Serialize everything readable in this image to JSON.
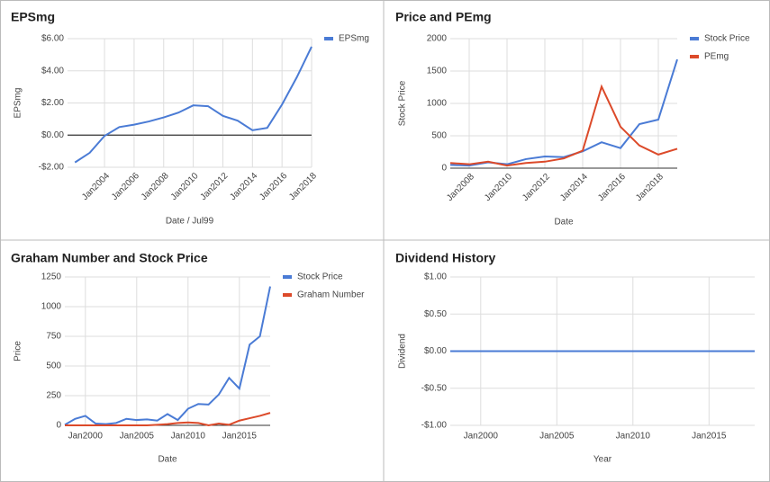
{
  "chart_data": [
    {
      "type": "line",
      "title": "EPSmg",
      "xlabel": "Date / Jul99",
      "ylabel": "EPSmg",
      "legend": "right",
      "tick_rotate": true,
      "x": [
        2002,
        2003,
        2004,
        2005,
        2006,
        2007,
        2008,
        2009,
        2010,
        2011,
        2012,
        2013,
        2014,
        2015,
        2016,
        2017,
        2018
      ],
      "series": [
        {
          "name": "EPSmg",
          "color": "#4a7bd5",
          "values": [
            -1.7,
            -1.1,
            -0.05,
            0.5,
            0.65,
            0.85,
            1.1,
            1.4,
            1.85,
            1.8,
            1.2,
            0.9,
            0.3,
            0.45,
            1.9,
            3.6,
            5.5
          ]
        }
      ],
      "xlim": [
        2001.5,
        2018
      ],
      "xticks": [
        {
          "value": 2004,
          "label": "Jan2004"
        },
        {
          "value": 2006,
          "label": "Jan2006"
        },
        {
          "value": 2008,
          "label": "Jan2008"
        },
        {
          "value": 2010,
          "label": "Jan2010"
        },
        {
          "value": 2012,
          "label": "Jan2012"
        },
        {
          "value": 2014,
          "label": "Jan2014"
        },
        {
          "value": 2016,
          "label": "Jan2016"
        },
        {
          "value": 2018,
          "label": "Jan2018"
        }
      ],
      "ylim": [
        -2,
        6
      ],
      "yticks": [
        {
          "value": -2,
          "label": "-$2.00"
        },
        {
          "value": 0,
          "label": "$0.00"
        },
        {
          "value": 2,
          "label": "$2.00"
        },
        {
          "value": 4,
          "label": "$4.00"
        },
        {
          "value": 6,
          "label": "$6.00"
        }
      ],
      "grid": true
    },
    {
      "type": "line",
      "title": "Price and PEmg",
      "xlabel": "Date",
      "ylabel": "Stock Price",
      "legend": "right",
      "tick_rotate": true,
      "x": [
        2007,
        2008,
        2009,
        2010,
        2011,
        2012,
        2013,
        2014,
        2015,
        2016,
        2017,
        2018,
        2019
      ],
      "series": [
        {
          "name": "Stock Price",
          "color": "#4a7bd5",
          "values": [
            50,
            40,
            90,
            60,
            140,
            180,
            170,
            260,
            400,
            310,
            680,
            750,
            1680
          ]
        },
        {
          "name": "PEmg",
          "color": "#dc4a2a",
          "values": [
            80,
            60,
            100,
            40,
            80,
            100,
            150,
            270,
            1260,
            640,
            350,
            210,
            300
          ]
        }
      ],
      "xlim": [
        2007,
        2019
      ],
      "xticks": [
        {
          "value": 2008,
          "label": "Jan2008"
        },
        {
          "value": 2010,
          "label": "Jan2010"
        },
        {
          "value": 2012,
          "label": "Jan2012"
        },
        {
          "value": 2014,
          "label": "Jan2014"
        },
        {
          "value": 2016,
          "label": "Jan2016"
        },
        {
          "value": 2018,
          "label": "Jan2018"
        }
      ],
      "ylim": [
        0,
        2000
      ],
      "yticks": [
        0,
        500,
        1000,
        1500,
        2000
      ],
      "grid": true
    },
    {
      "type": "line",
      "title": "Graham Number and Stock Price",
      "xlabel": "Date",
      "ylabel": "Price",
      "legend": "right",
      "tick_rotate": false,
      "x": [
        1998,
        1999,
        2000,
        2001,
        2002,
        2003,
        2004,
        2005,
        2006,
        2007,
        2008,
        2009,
        2010,
        2011,
        2012,
        2013,
        2014,
        2015,
        2016,
        2017,
        2018
      ],
      "series": [
        {
          "name": "Stock Price",
          "color": "#4a7bd5",
          "values": [
            5,
            55,
            80,
            15,
            10,
            20,
            55,
            45,
            50,
            40,
            95,
            45,
            140,
            180,
            175,
            260,
            400,
            310,
            680,
            750,
            1170
          ]
        },
        {
          "name": "Graham Number",
          "color": "#dc4a2a",
          "values": [
            0,
            0,
            0,
            0,
            0,
            0,
            0,
            0,
            0,
            5,
            10,
            20,
            25,
            20,
            0,
            15,
            5,
            40,
            60,
            80,
            105
          ]
        }
      ],
      "xlim": [
        1998,
        2018
      ],
      "xticks": [
        {
          "value": 2000,
          "label": "Jan2000"
        },
        {
          "value": 2005,
          "label": "Jan2005"
        },
        {
          "value": 2010,
          "label": "Jan2010"
        },
        {
          "value": 2015,
          "label": "Jan2015"
        }
      ],
      "ylim": [
        0,
        1250
      ],
      "yticks": [
        0,
        250,
        500,
        750,
        1000,
        1250
      ],
      "grid": true
    },
    {
      "type": "line",
      "title": "Dividend History",
      "xlabel": "Year",
      "ylabel": "Dividend",
      "legend": "none",
      "tick_rotate": false,
      "x": [
        1998,
        2018
      ],
      "series": [
        {
          "color": "#4a7bd5",
          "values": [
            0,
            0
          ]
        }
      ],
      "xlim": [
        1998,
        2018
      ],
      "xticks": [
        {
          "value": 2000,
          "label": "Jan2000"
        },
        {
          "value": 2005,
          "label": "Jan2005"
        },
        {
          "value": 2010,
          "label": "Jan2010"
        },
        {
          "value": 2015,
          "label": "Jan2015"
        }
      ],
      "ylim": [
        -1,
        1
      ],
      "yticks": [
        {
          "value": -1,
          "label": "-$1.00"
        },
        {
          "value": -0.5,
          "label": "-$0.50"
        },
        {
          "value": 0,
          "label": "$0.00"
        },
        {
          "value": 0.5,
          "label": "$0.50"
        },
        {
          "value": 1,
          "label": "$1.00"
        }
      ],
      "grid": true
    }
  ]
}
